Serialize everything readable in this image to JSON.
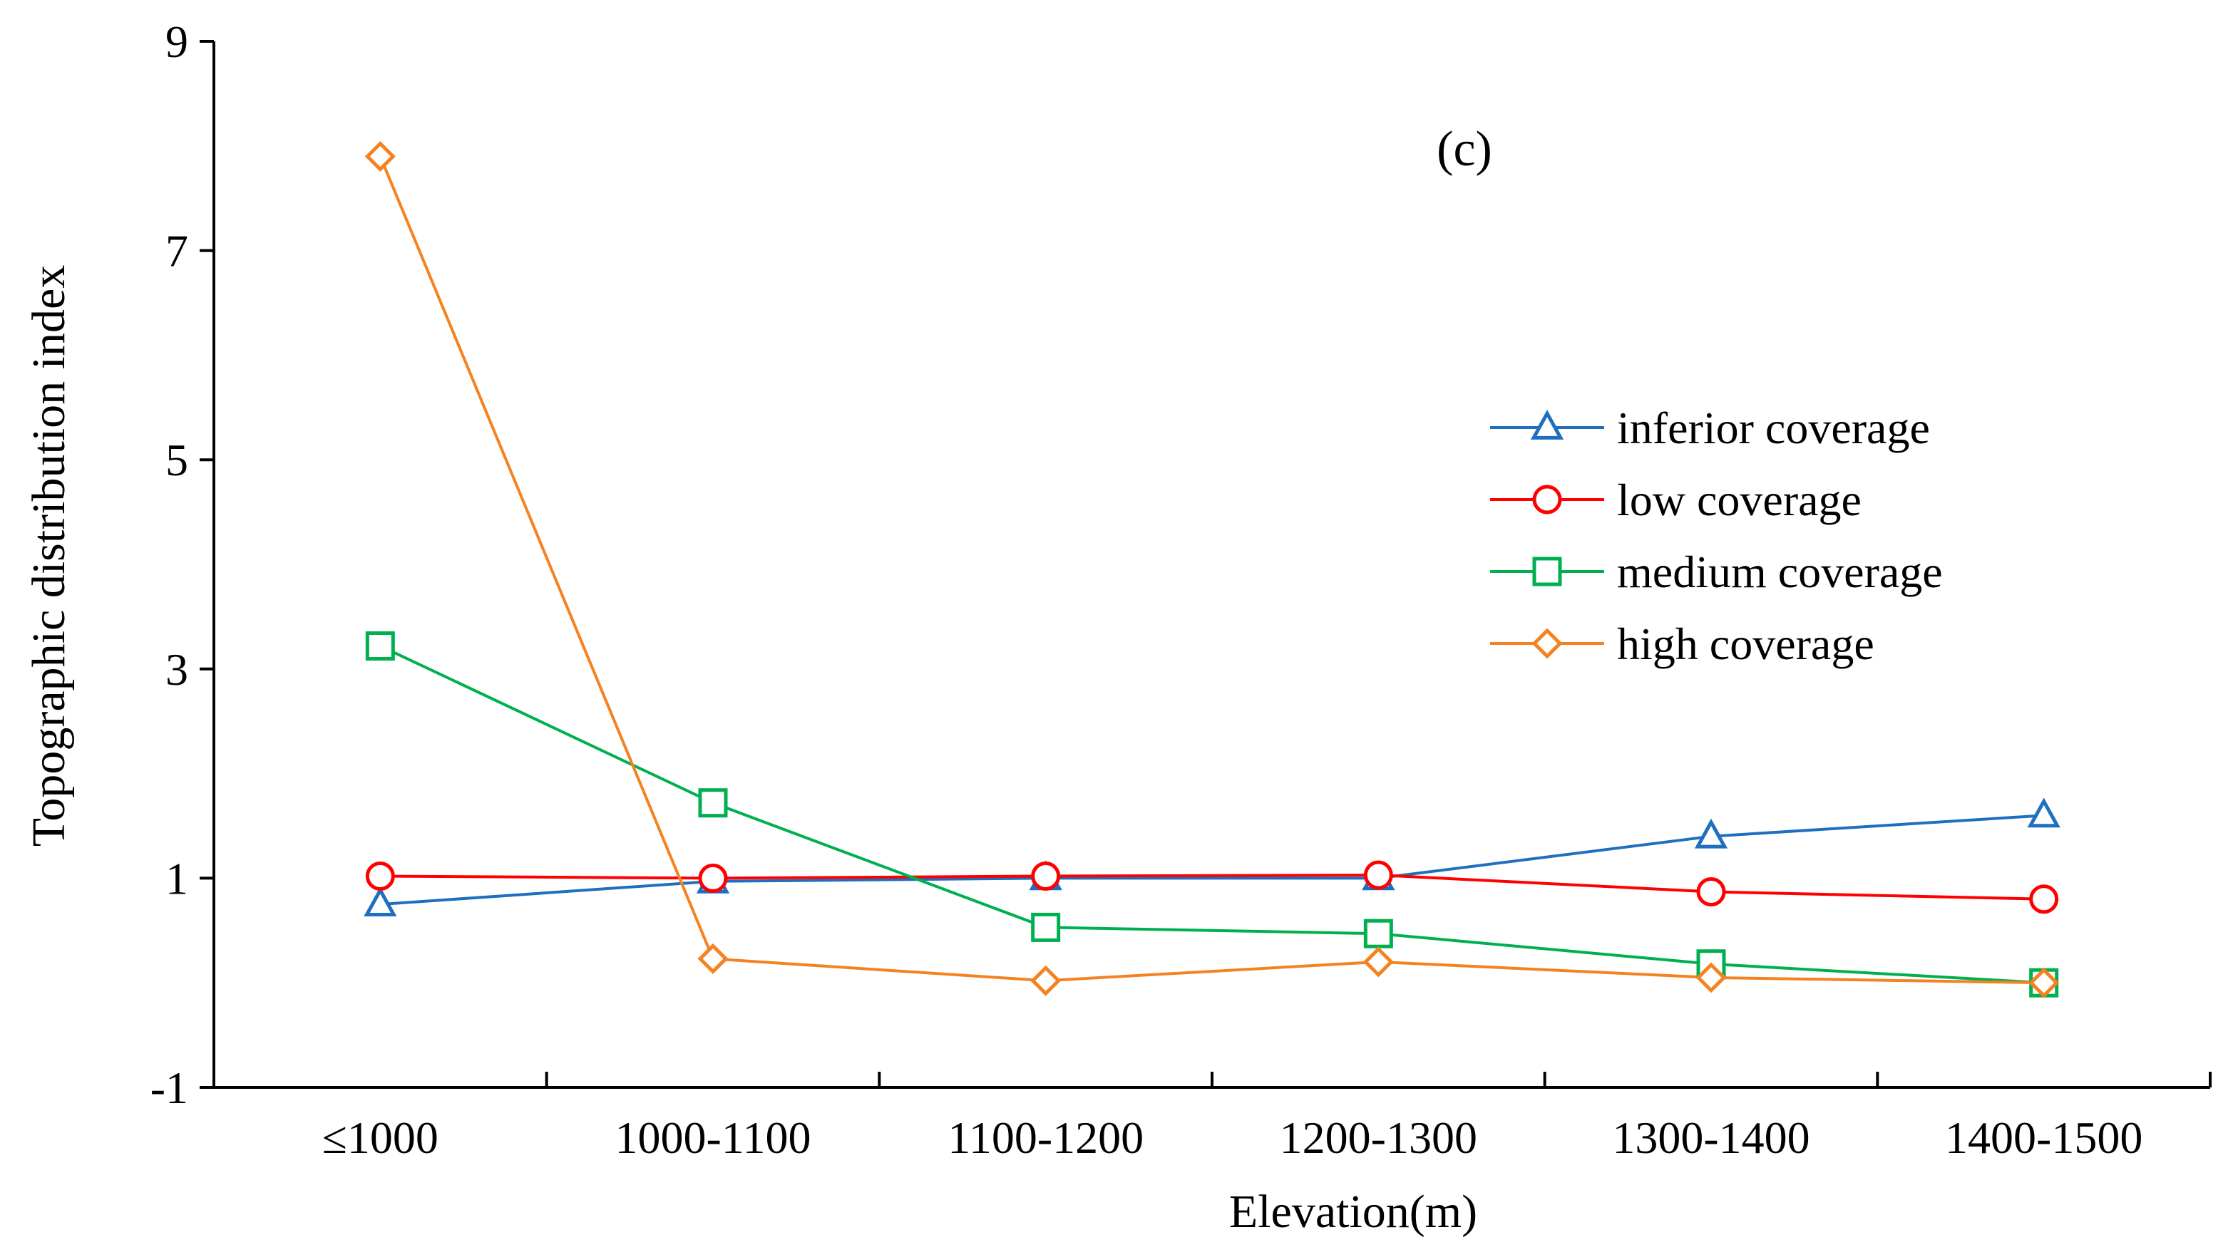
{
  "chart_data": {
    "type": "line",
    "annotation": "(c)",
    "xlabel": "Elevation(m)",
    "ylabel": "Topographic distribution index",
    "categories": [
      "≤1000",
      "1000-1100",
      "1100-1200",
      "1200-1300",
      "1300-1400",
      "1400-1500"
    ],
    "ylim": [
      -1,
      9
    ],
    "yticks": [
      -1,
      1,
      3,
      5,
      7,
      9
    ],
    "grid": false,
    "legend_position": "right",
    "series": [
      {
        "name": "inferior coverage",
        "marker": "triangle",
        "color": "#1F6FC0",
        "values": [
          0.75,
          0.97,
          1.0,
          1.0,
          1.4,
          1.6
        ]
      },
      {
        "name": "low coverage",
        "marker": "circle",
        "color": "#FF0000",
        "values": [
          1.02,
          1.0,
          1.02,
          1.03,
          0.87,
          0.8
        ]
      },
      {
        "name": "medium coverage",
        "marker": "square",
        "color": "#00B050",
        "values": [
          3.22,
          1.72,
          0.53,
          0.47,
          0.18,
          0.0
        ]
      },
      {
        "name": "high coverage",
        "marker": "diamond",
        "color": "#F58220",
        "values": [
          7.9,
          0.23,
          0.02,
          0.2,
          0.05,
          0.0
        ]
      }
    ]
  }
}
